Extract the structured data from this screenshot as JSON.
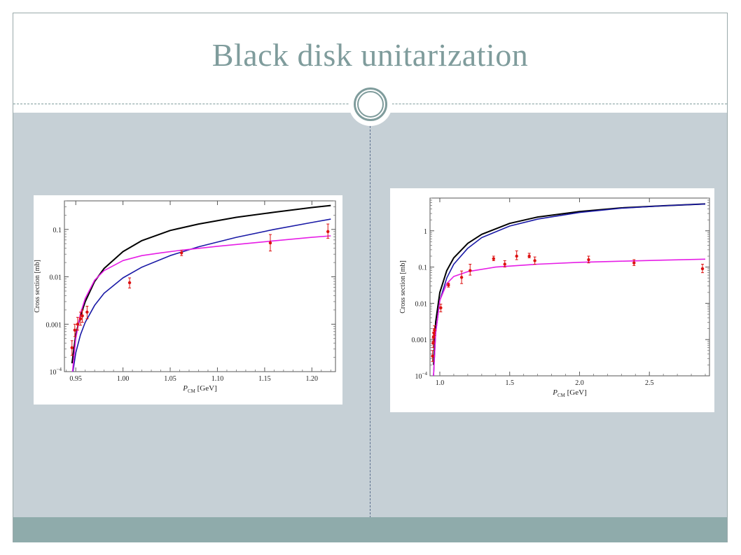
{
  "slide": {
    "title": "Black disk unitarization"
  },
  "colors": {
    "title": "#7f9c9c",
    "content_bg": "#c6d0d6",
    "footer": "#8fabab",
    "curve_black": "#000000",
    "curve_blue": "#1a1aa6",
    "curve_magenta": "#e61ee6",
    "data_points": "#dd1111"
  },
  "chart_data": [
    {
      "type": "line",
      "xlabel": "P_CM [GeV]",
      "ylabel": "Cross section [mb]",
      "xlim": [
        0.938,
        1.225
      ],
      "ylim": [
        0.0001,
        0.4
      ],
      "yscale": "log",
      "grid": false,
      "xticks": [
        {
          "v": 0.95,
          "l": "0.95"
        },
        {
          "v": 1.0,
          "l": "1.00"
        },
        {
          "v": 1.05,
          "l": "1.05"
        },
        {
          "v": 1.1,
          "l": "1.10"
        },
        {
          "v": 1.15,
          "l": "1.15"
        },
        {
          "v": 1.2,
          "l": "1.20"
        }
      ],
      "yticks": [
        {
          "v": 0.0001,
          "l": "10^-4"
        },
        {
          "v": 0.001,
          "l": "0.001"
        },
        {
          "v": 0.01,
          "l": "0.01"
        },
        {
          "v": 0.1,
          "l": "0.1"
        }
      ],
      "series": [
        {
          "color": "black",
          "x": [
            0.946,
            0.95,
            0.955,
            0.96,
            0.97,
            0.98,
            1.0,
            1.02,
            1.05,
            1.08,
            1.12,
            1.16,
            1.2,
            1.22
          ],
          "values": [
            0.00015,
            0.0006,
            0.0015,
            0.003,
            0.008,
            0.015,
            0.034,
            0.058,
            0.095,
            0.13,
            0.18,
            0.23,
            0.29,
            0.32
          ]
        },
        {
          "color": "blue",
          "x": [
            0.947,
            0.95,
            0.955,
            0.96,
            0.97,
            0.98,
            1.0,
            1.02,
            1.05,
            1.08,
            1.12,
            1.16,
            1.2,
            1.22
          ],
          "values": [
            0.0001,
            0.00025,
            0.0006,
            0.0011,
            0.0025,
            0.0045,
            0.0095,
            0.016,
            0.028,
            0.043,
            0.068,
            0.1,
            0.14,
            0.165
          ]
        },
        {
          "color": "magenta",
          "x": [
            0.9465,
            0.95,
            0.955,
            0.96,
            0.97,
            0.98,
            1.0,
            1.02,
            1.04,
            1.06,
            1.1,
            1.15,
            1.2,
            1.22
          ],
          "values": [
            0.0001,
            0.0005,
            0.0017,
            0.0035,
            0.0085,
            0.0135,
            0.022,
            0.028,
            0.032,
            0.036,
            0.044,
            0.055,
            0.068,
            0.073
          ]
        }
      ],
      "points": [
        {
          "x": 0.946,
          "y": 0.00032,
          "lo": 0.00022,
          "hi": 0.00045
        },
        {
          "x": 0.949,
          "y": 0.00075,
          "lo": 0.00055,
          "hi": 0.001
        },
        {
          "x": 0.952,
          "y": 0.001,
          "lo": 0.00075,
          "hi": 0.0014
        },
        {
          "x": 0.955,
          "y": 0.0013,
          "lo": 0.00095,
          "hi": 0.0018
        },
        {
          "x": 0.957,
          "y": 0.0015,
          "lo": 0.0011,
          "hi": 0.002
        },
        {
          "x": 0.962,
          "y": 0.0018,
          "lo": 0.0013,
          "hi": 0.0024
        },
        {
          "x": 1.007,
          "y": 0.0075,
          "lo": 0.0058,
          "hi": 0.0095
        },
        {
          "x": 1.062,
          "y": 0.032,
          "lo": 0.028,
          "hi": 0.036
        },
        {
          "x": 1.156,
          "y": 0.052,
          "lo": 0.035,
          "hi": 0.078
        },
        {
          "x": 1.217,
          "y": 0.09,
          "lo": 0.065,
          "hi": 0.13
        }
      ]
    },
    {
      "type": "line",
      "xlabel": "P_CM [GeV]",
      "ylabel": "Cross section [mb]",
      "xlim": [
        0.93,
        2.93
      ],
      "ylim": [
        0.0001,
        8
      ],
      "yscale": "log",
      "grid": false,
      "xticks": [
        {
          "v": 1.0,
          "l": "1.0"
        },
        {
          "v": 1.5,
          "l": "1.5"
        },
        {
          "v": 2.0,
          "l": "2.0"
        },
        {
          "v": 2.5,
          "l": "2.5"
        }
      ],
      "yticks": [
        {
          "v": 0.0001,
          "l": "10^-4"
        },
        {
          "v": 0.001,
          "l": "0.001"
        },
        {
          "v": 0.01,
          "l": "0.01"
        },
        {
          "v": 0.1,
          "l": "0.1"
        },
        {
          "v": 1,
          "l": "1"
        }
      ],
      "series": [
        {
          "color": "black",
          "x": [
            0.955,
            0.97,
            1.0,
            1.05,
            1.1,
            1.2,
            1.3,
            1.5,
            1.7,
            2.0,
            2.3,
            2.6,
            2.9
          ],
          "values": [
            0.0002,
            0.003,
            0.02,
            0.08,
            0.18,
            0.45,
            0.8,
            1.6,
            2.4,
            3.4,
            4.3,
            4.9,
            5.5
          ]
        },
        {
          "color": "blue",
          "x": [
            0.955,
            0.97,
            1.0,
            1.05,
            1.1,
            1.2,
            1.3,
            1.5,
            1.7,
            2.0,
            2.3,
            2.6,
            2.9
          ],
          "values": [
            0.0001,
            0.0015,
            0.012,
            0.05,
            0.12,
            0.33,
            0.65,
            1.35,
            2.1,
            3.2,
            4.2,
            4.9,
            5.5
          ]
        },
        {
          "color": "magenta",
          "x": [
            0.955,
            0.97,
            1.0,
            1.05,
            1.1,
            1.2,
            1.4,
            1.7,
            2.0,
            2.3,
            2.6,
            2.9
          ],
          "values": [
            0.0001,
            0.0015,
            0.012,
            0.035,
            0.055,
            0.075,
            0.1,
            0.12,
            0.135,
            0.145,
            0.155,
            0.165
          ]
        }
      ],
      "points": [
        {
          "x": 0.948,
          "y": 0.00035,
          "lo": 0.00025,
          "hi": 0.0005
        },
        {
          "x": 0.952,
          "y": 0.0008,
          "lo": 0.0006,
          "hi": 0.0011
        },
        {
          "x": 0.955,
          "y": 0.0012,
          "lo": 0.0009,
          "hi": 0.0016
        },
        {
          "x": 0.958,
          "y": 0.0015,
          "lo": 0.0011,
          "hi": 0.002
        },
        {
          "x": 0.962,
          "y": 0.0018,
          "lo": 0.0013,
          "hi": 0.0024
        },
        {
          "x": 1.007,
          "y": 0.0075,
          "lo": 0.0058,
          "hi": 0.0095
        },
        {
          "x": 1.062,
          "y": 0.032,
          "lo": 0.028,
          "hi": 0.036
        },
        {
          "x": 1.156,
          "y": 0.052,
          "lo": 0.035,
          "hi": 0.078
        },
        {
          "x": 1.217,
          "y": 0.08,
          "lo": 0.06,
          "hi": 0.12
        },
        {
          "x": 1.385,
          "y": 0.17,
          "lo": 0.15,
          "hi": 0.2
        },
        {
          "x": 1.465,
          "y": 0.12,
          "lo": 0.1,
          "hi": 0.15
        },
        {
          "x": 1.55,
          "y": 0.2,
          "lo": 0.16,
          "hi": 0.28
        },
        {
          "x": 1.64,
          "y": 0.2,
          "lo": 0.18,
          "hi": 0.24
        },
        {
          "x": 1.68,
          "y": 0.15,
          "lo": 0.12,
          "hi": 0.19
        },
        {
          "x": 2.065,
          "y": 0.16,
          "lo": 0.13,
          "hi": 0.2
        },
        {
          "x": 2.39,
          "y": 0.13,
          "lo": 0.11,
          "hi": 0.16
        },
        {
          "x": 2.88,
          "y": 0.09,
          "lo": 0.07,
          "hi": 0.12
        }
      ]
    }
  ]
}
